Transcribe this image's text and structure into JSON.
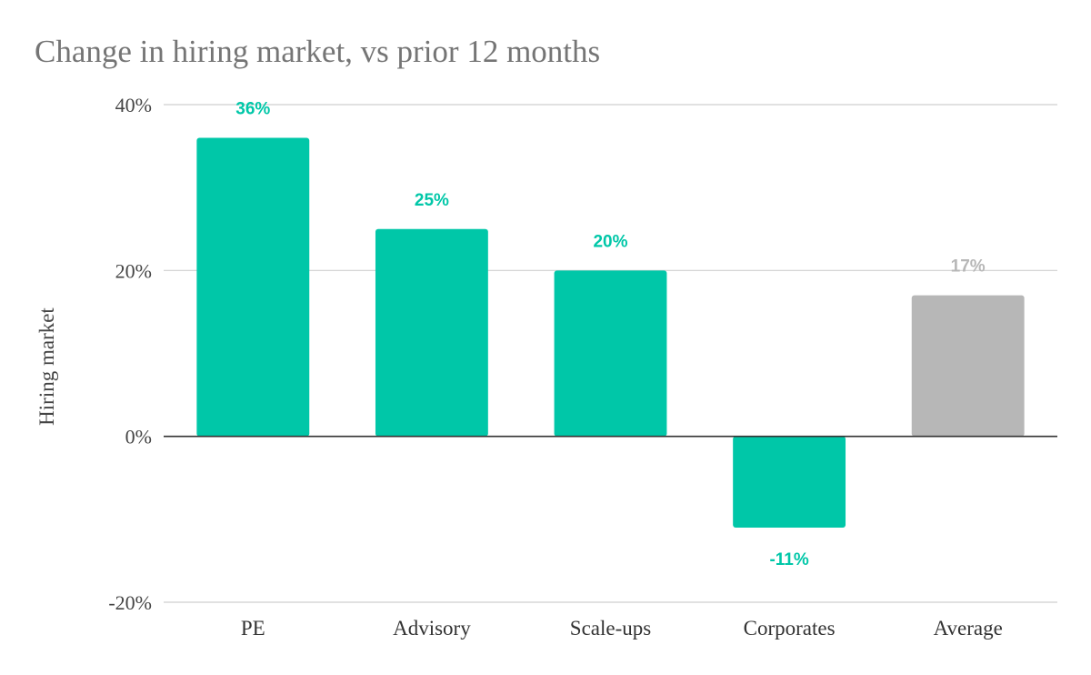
{
  "chart_data": {
    "type": "bar",
    "title": "Change in hiring market, vs prior 12 months",
    "xlabel": "",
    "ylabel": "Hiring market",
    "categories": [
      "PE",
      "Advisory",
      "Scale-ups",
      "Corporates",
      "Average"
    ],
    "values": [
      36,
      25,
      20,
      -11,
      17
    ],
    "data_labels": [
      "36%",
      "25%",
      "20%",
      "-11%",
      "17%"
    ],
    "bar_colors": [
      "#00c7a8",
      "#00c7a8",
      "#00c7a8",
      "#00c7a8",
      "#b7b7b7"
    ],
    "label_colors": [
      "#00c7a8",
      "#00c7a8",
      "#00c7a8",
      "#00c7a8",
      "#b7b7b7"
    ],
    "ylim": [
      -20,
      40
    ],
    "yticks": [
      -20,
      0,
      20,
      40
    ],
    "ytick_labels": [
      "-20%",
      "0%",
      "20%",
      "40%"
    ],
    "grid": true,
    "legend": "none"
  }
}
